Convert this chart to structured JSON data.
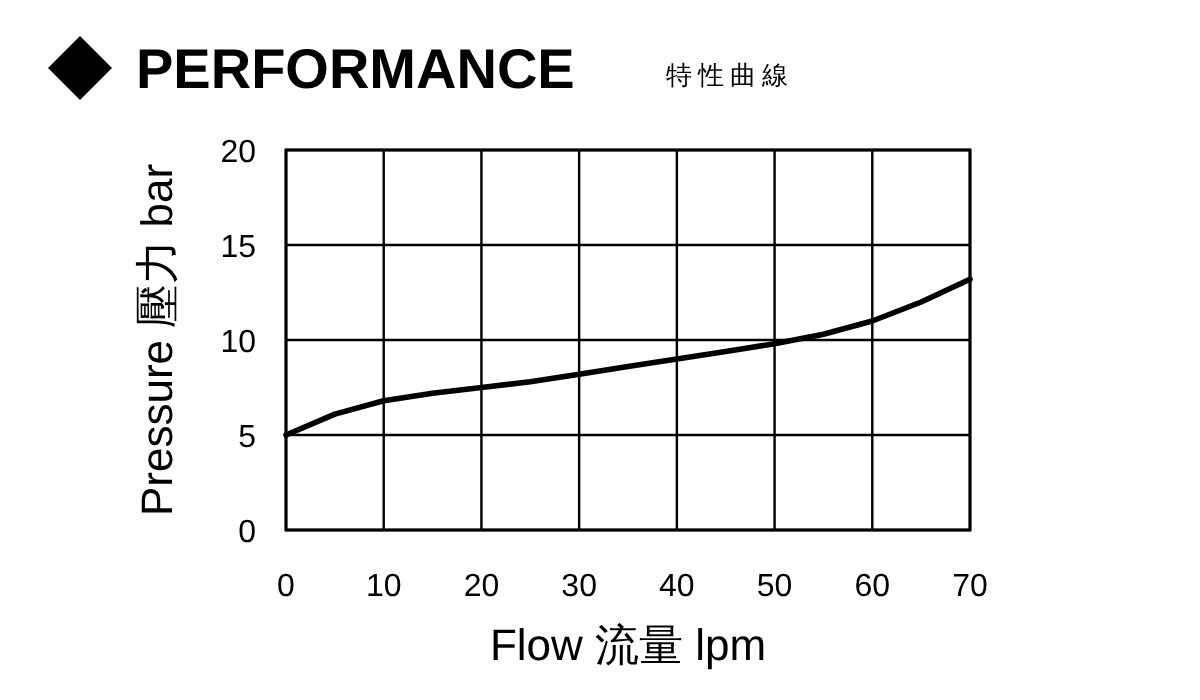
{
  "chart_data": {
    "type": "line",
    "title": "PERFORMANCE",
    "subtitle": "特性曲線",
    "xlabel": "Flow 流量 lpm",
    "ylabel": "Pressure 壓力 bar",
    "x": [
      0,
      5,
      10,
      15,
      20,
      25,
      30,
      35,
      40,
      45,
      50,
      55,
      60,
      65,
      70
    ],
    "series": [
      {
        "color": "#000000",
        "values": [
          5,
          6.1,
          6.8,
          7.2,
          7.5,
          7.8,
          8.2,
          8.6,
          9.0,
          9.4,
          9.8,
          10.3,
          11.0,
          12.0,
          13.2
        ]
      }
    ],
    "xlim": [
      0,
      70
    ],
    "xticks": [
      0,
      10,
      20,
      30,
      40,
      50,
      60,
      70
    ],
    "ylim": [
      0,
      20
    ],
    "yticks": [
      0,
      5,
      10,
      15,
      20
    ],
    "grid": true,
    "marker": "none",
    "line_style": "solid"
  }
}
